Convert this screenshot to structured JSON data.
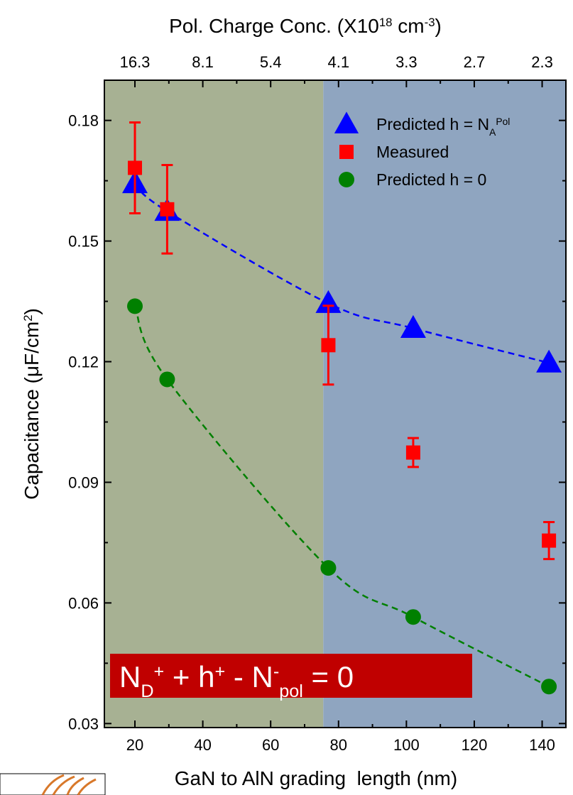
{
  "chart_data": {
    "type": "scatter",
    "x_label": "GaN to AlN grading  length (nm)",
    "y_label": [
      {
        "text": "Capacitance (μF/cm"
      },
      {
        "text": "2",
        "sup": true
      },
      {
        "text": ")"
      }
    ],
    "x2_label": [
      {
        "text": "Pol. Charge Conc. (X10"
      },
      {
        "text": "18",
        "sup": true
      },
      {
        "text": " cm"
      },
      {
        "text": "-3",
        "sup": true
      },
      {
        "text": ")"
      }
    ],
    "xlim": [
      11,
      147
    ],
    "ylim": [
      0.029,
      0.19
    ],
    "xticks": [
      20,
      40,
      60,
      80,
      100,
      120,
      140
    ],
    "yticks": [
      0.03,
      0.06,
      0.09,
      0.12,
      0.15,
      0.18
    ],
    "x2ticks": [
      16.3,
      8.1,
      5.4,
      4.1,
      3.3,
      2.7,
      2.3
    ],
    "regions": [
      {
        "xlim": [
          11,
          75.5
        ],
        "color": "#a7b193"
      },
      {
        "xlim": [
          75.5,
          147
        ],
        "color": "#8fa5c0"
      }
    ],
    "x": [
      20,
      29.5,
      77,
      102,
      142
    ],
    "series": [
      {
        "name": [
          {
            "text": "Predicted h = N"
          },
          {
            "text": "A",
            "sub": true
          },
          {
            "text": "Pol",
            "sup": true
          }
        ],
        "color": "#0000ff",
        "marker": "triangle",
        "fit": "dashed",
        "values": [
          0.1643,
          0.1574,
          0.1345,
          0.1283,
          0.1197
        ]
      },
      {
        "name": [
          {
            "text": "Measured"
          }
        ],
        "color": "#ff0000",
        "marker": "square",
        "values": [
          0.1682,
          0.1579,
          0.1241,
          0.0974,
          0.0755
        ],
        "errors": [
          0.0113,
          0.011,
          0.0098,
          0.0036,
          0.0046
        ]
      },
      {
        "name": [
          {
            "text": "Predicted h = 0"
          }
        ],
        "color": "#008000",
        "marker": "circle",
        "fit": "dashed",
        "values": [
          0.1338,
          0.1156,
          0.0687,
          0.0565,
          0.0392
        ]
      }
    ],
    "legend": "upper right",
    "annotation": [
      {
        "text": "N"
      },
      {
        "text": "D",
        "sub": true
      },
      {
        "text": "+",
        "sup": true
      },
      {
        "text": " + h"
      },
      {
        "text": "+",
        "sup": true
      },
      {
        "text": " - N"
      },
      {
        "text": "-",
        "sup": true
      },
      {
        "text": "pol",
        "sub": true
      },
      {
        "text": " = 0"
      }
    ]
  }
}
